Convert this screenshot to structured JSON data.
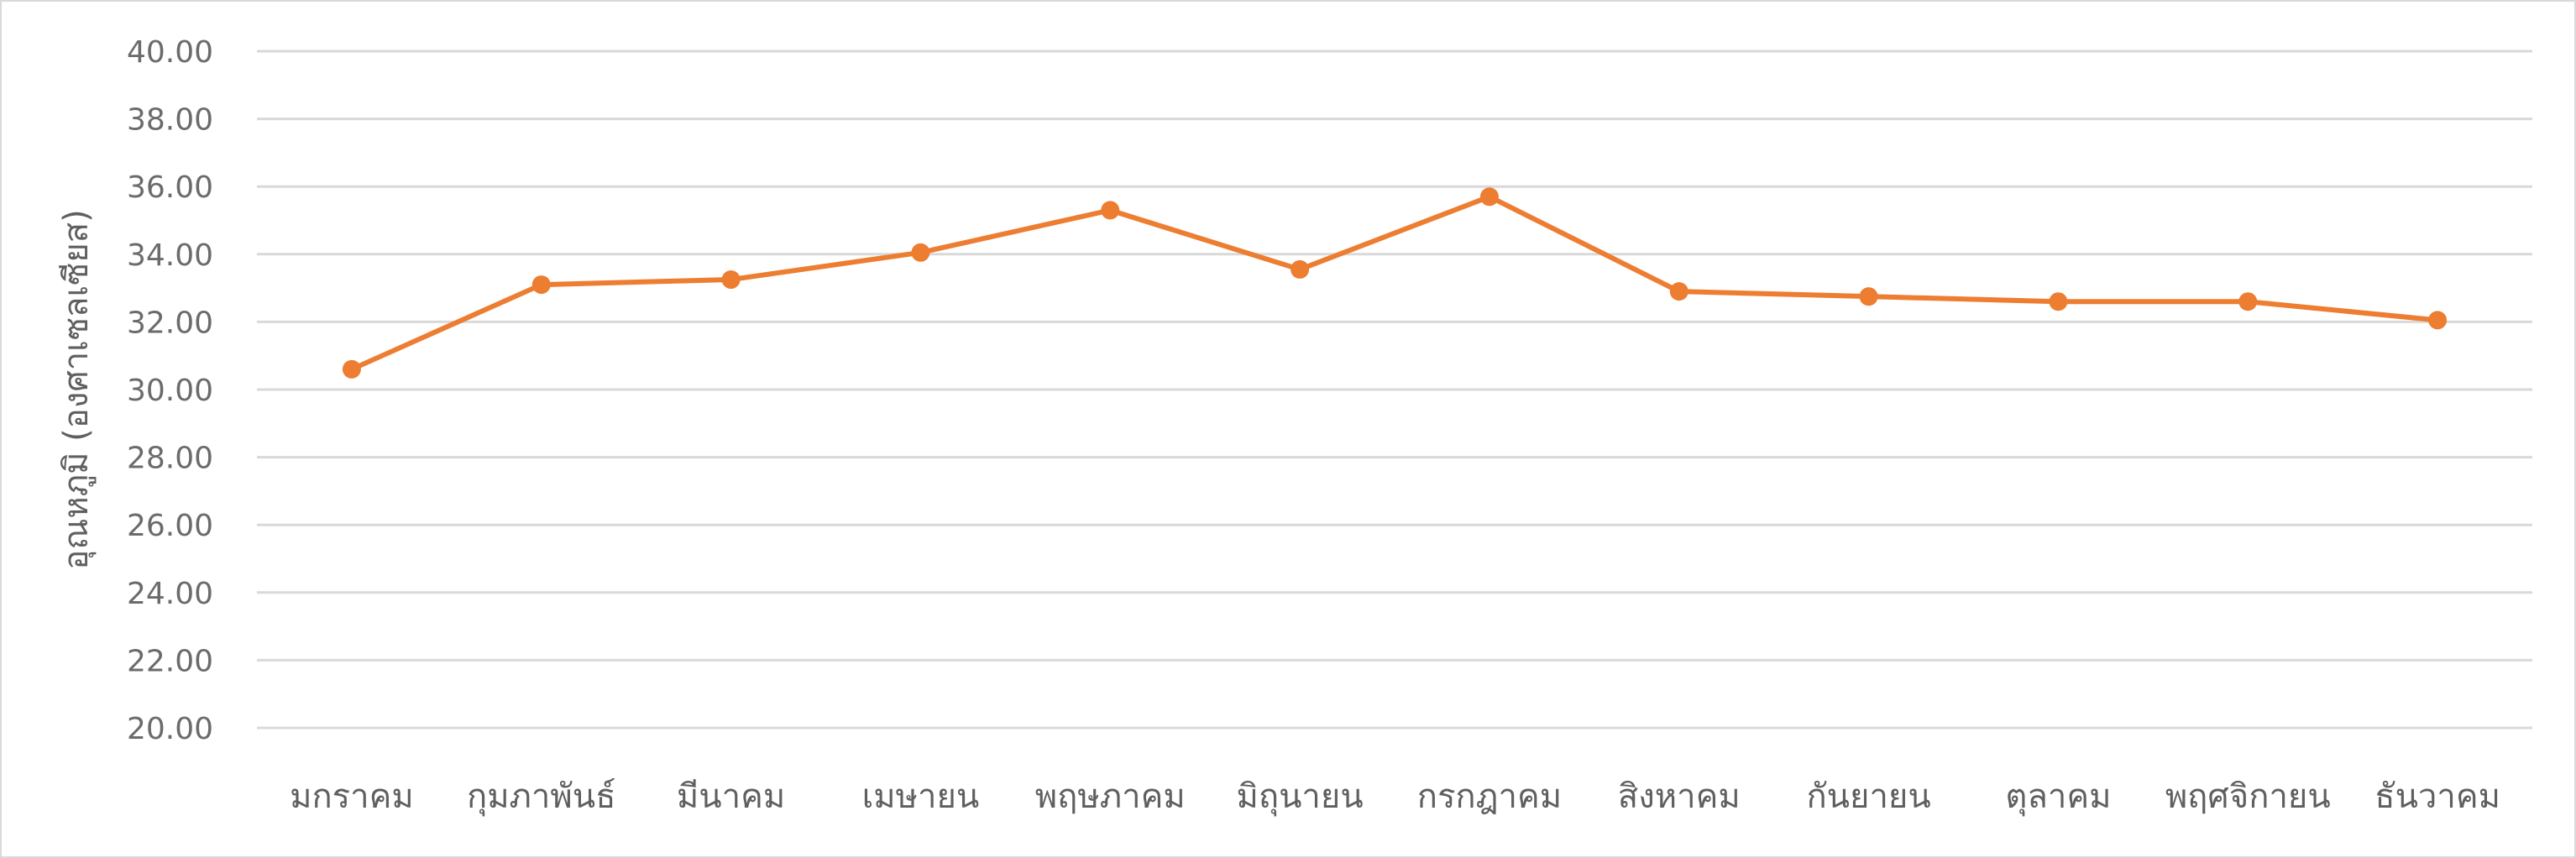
{
  "chart_data": {
    "type": "line",
    "title": "",
    "xlabel": "",
    "ylabel": "อุณหภูมิ (องศาเซลเซียส)",
    "ylim": [
      20,
      40
    ],
    "ytick_step": 2,
    "grid": true,
    "legend": "none",
    "categories": [
      "มกราคม",
      "กุมภาพันธ์",
      "มีนาคม",
      "เมษายน",
      "พฤษภาคม",
      "มิถุนายน",
      "กรกฎาคม",
      "สิงหาคม",
      "กันยายน",
      "ตุลาคม",
      "พฤศจิกายน",
      "ธันวาคม"
    ],
    "ytick_labels": [
      "20.00",
      "22.00",
      "24.00",
      "26.00",
      "28.00",
      "30.00",
      "32.00",
      "34.00",
      "36.00",
      "38.00",
      "40.00"
    ],
    "series": [
      {
        "values": [
          30.6,
          33.1,
          33.25,
          34.05,
          35.3,
          33.55,
          35.7,
          32.9,
          32.75,
          32.6,
          32.6,
          32.05
        ]
      }
    ],
    "colors": {
      "series": "#ed7d31",
      "grid": "#d9d9d9",
      "text": "#5f5f5f"
    }
  }
}
